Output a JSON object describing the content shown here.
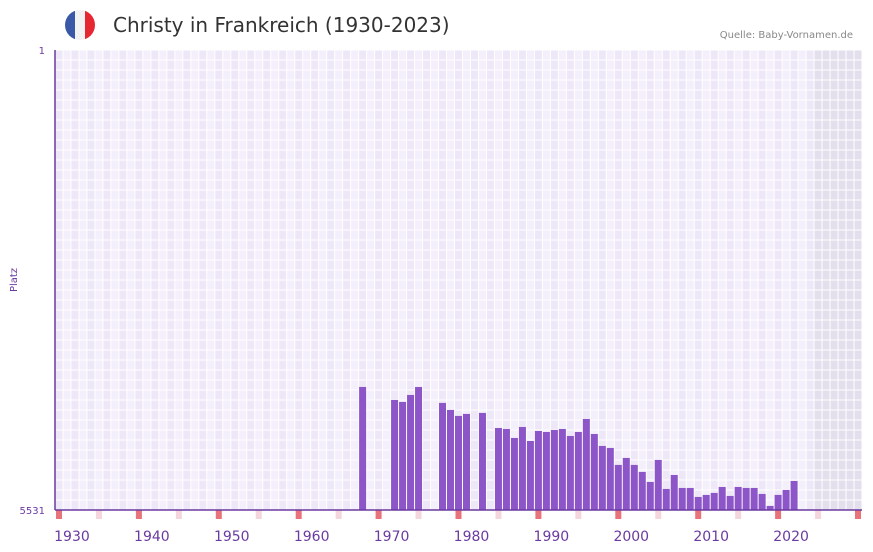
{
  "header": {
    "title": "Christy in Frankreich (1930-2023)",
    "source": "Quelle: Baby-Vornamen.de",
    "flag_colors": [
      "#3a58a8",
      "#f2f2f2",
      "#e62630"
    ]
  },
  "colors": {
    "bar": "#8c55c8",
    "axis": "#6a3aa0",
    "marker_red": "#e8737a",
    "marker_pink": "#f5d6df",
    "future": "#e3dfec"
  },
  "chart_data": {
    "type": "bar",
    "title": "Christy in Frankreich (1930-2023)",
    "xlabel": "",
    "ylabel": "Platz",
    "ylim": [
      1,
      5531
    ],
    "y_inverted": true,
    "y_ticks": [
      "1",
      "5531"
    ],
    "xlim": [
      1927.5,
      2028.5
    ],
    "x_ticks": [
      1930,
      1940,
      1950,
      1960,
      1970,
      1980,
      1990,
      2000,
      2010,
      2020
    ],
    "grid": true,
    "future_from": 2022.5,
    "x": [
      1966,
      1970,
      1971,
      1972,
      1973,
      1976,
      1977,
      1978,
      1979,
      1981,
      1983,
      1984,
      1985,
      1986,
      1987,
      1988,
      1989,
      1990,
      1991,
      1992,
      1993,
      1994,
      1995,
      1996,
      1997,
      1998,
      1999,
      2000,
      2001,
      2002,
      2003,
      2004,
      2005,
      2006,
      2007,
      2008,
      2009,
      2010,
      2011,
      2012,
      2013,
      2014,
      2015,
      2016,
      2017,
      2018,
      2019,
      2020
    ],
    "values": [
      4052,
      4208,
      4232,
      4148,
      4052,
      4244,
      4328,
      4400,
      4376,
      4364,
      4545,
      4557,
      4665,
      4533,
      4701,
      4581,
      4593,
      4569,
      4557,
      4641,
      4593,
      4437,
      4617,
      4761,
      4785,
      4989,
      4905,
      4989,
      5073,
      5194,
      4929,
      5278,
      5110,
      5266,
      5266,
      5374,
      5350,
      5326,
      5254,
      5362,
      5254,
      5266,
      5266,
      5338,
      5482,
      5350,
      5290,
      5182
    ]
  }
}
